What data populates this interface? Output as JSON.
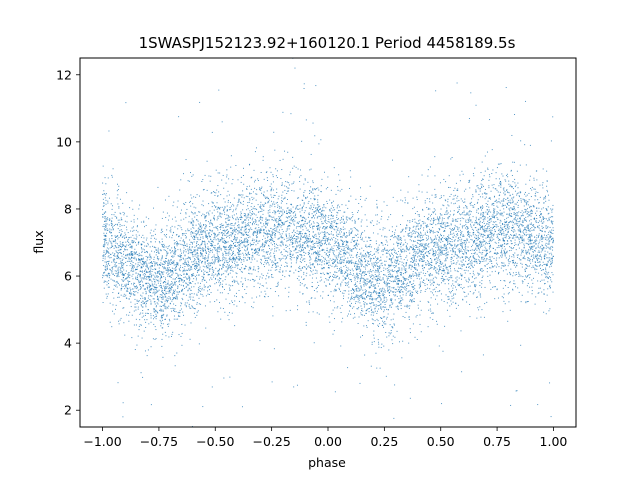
{
  "chart_data": {
    "type": "scatter",
    "title": "1SWASPJ152123.92+160120.1 Period 4458189.5s",
    "xlabel": "phase",
    "ylabel": "flux",
    "xlim": [
      -1.1,
      1.1
    ],
    "ylim": [
      1.5,
      12.5
    ],
    "xticks": [
      -1.0,
      -0.75,
      -0.5,
      -0.25,
      0.0,
      0.25,
      0.5,
      0.75,
      1.0
    ],
    "xtick_labels": [
      "−1.00",
      "−0.75",
      "−0.50",
      "−0.25",
      "0.00",
      "0.25",
      "0.50",
      "0.75",
      "1.00"
    ],
    "yticks": [
      2,
      4,
      6,
      8,
      10,
      12
    ],
    "ytick_labels": [
      "2",
      "4",
      "6",
      "8",
      "10",
      "12"
    ],
    "grid": false,
    "marker_color": "#1f77b4",
    "series": [
      {
        "x_range": [
          -1.0,
          1.0
        ],
        "profile": [
          [
            -1.0,
            7.0
          ],
          [
            -0.95,
            6.8
          ],
          [
            -0.9,
            6.5
          ],
          [
            -0.85,
            6.2
          ],
          [
            -0.8,
            5.9
          ],
          [
            -0.75,
            5.8
          ],
          [
            -0.7,
            6.0
          ],
          [
            -0.65,
            6.3
          ],
          [
            -0.6,
            6.7
          ],
          [
            -0.55,
            6.8
          ],
          [
            -0.5,
            6.9
          ],
          [
            -0.45,
            6.9
          ],
          [
            -0.4,
            7.0
          ],
          [
            -0.35,
            7.2
          ],
          [
            -0.3,
            7.3
          ],
          [
            -0.25,
            7.4
          ],
          [
            -0.2,
            7.4
          ],
          [
            -0.15,
            7.3
          ],
          [
            -0.1,
            7.2
          ],
          [
            -0.05,
            7.2
          ],
          [
            0.0,
            7.0
          ],
          [
            0.05,
            6.8
          ],
          [
            0.1,
            6.5
          ],
          [
            0.15,
            6.2
          ],
          [
            0.2,
            5.9
          ],
          [
            0.25,
            5.8
          ],
          [
            0.3,
            6.0
          ],
          [
            0.35,
            6.3
          ],
          [
            0.4,
            6.7
          ],
          [
            0.45,
            6.8
          ],
          [
            0.5,
            6.9
          ],
          [
            0.55,
            6.9
          ],
          [
            0.6,
            7.0
          ],
          [
            0.65,
            7.2
          ],
          [
            0.7,
            7.3
          ],
          [
            0.75,
            7.4
          ],
          [
            0.8,
            7.4
          ],
          [
            0.85,
            7.3
          ],
          [
            0.9,
            7.2
          ],
          [
            0.95,
            7.1
          ],
          [
            1.0,
            7.0
          ]
        ],
        "scatter_sigma": 0.85,
        "point_count": 9000
      }
    ]
  }
}
